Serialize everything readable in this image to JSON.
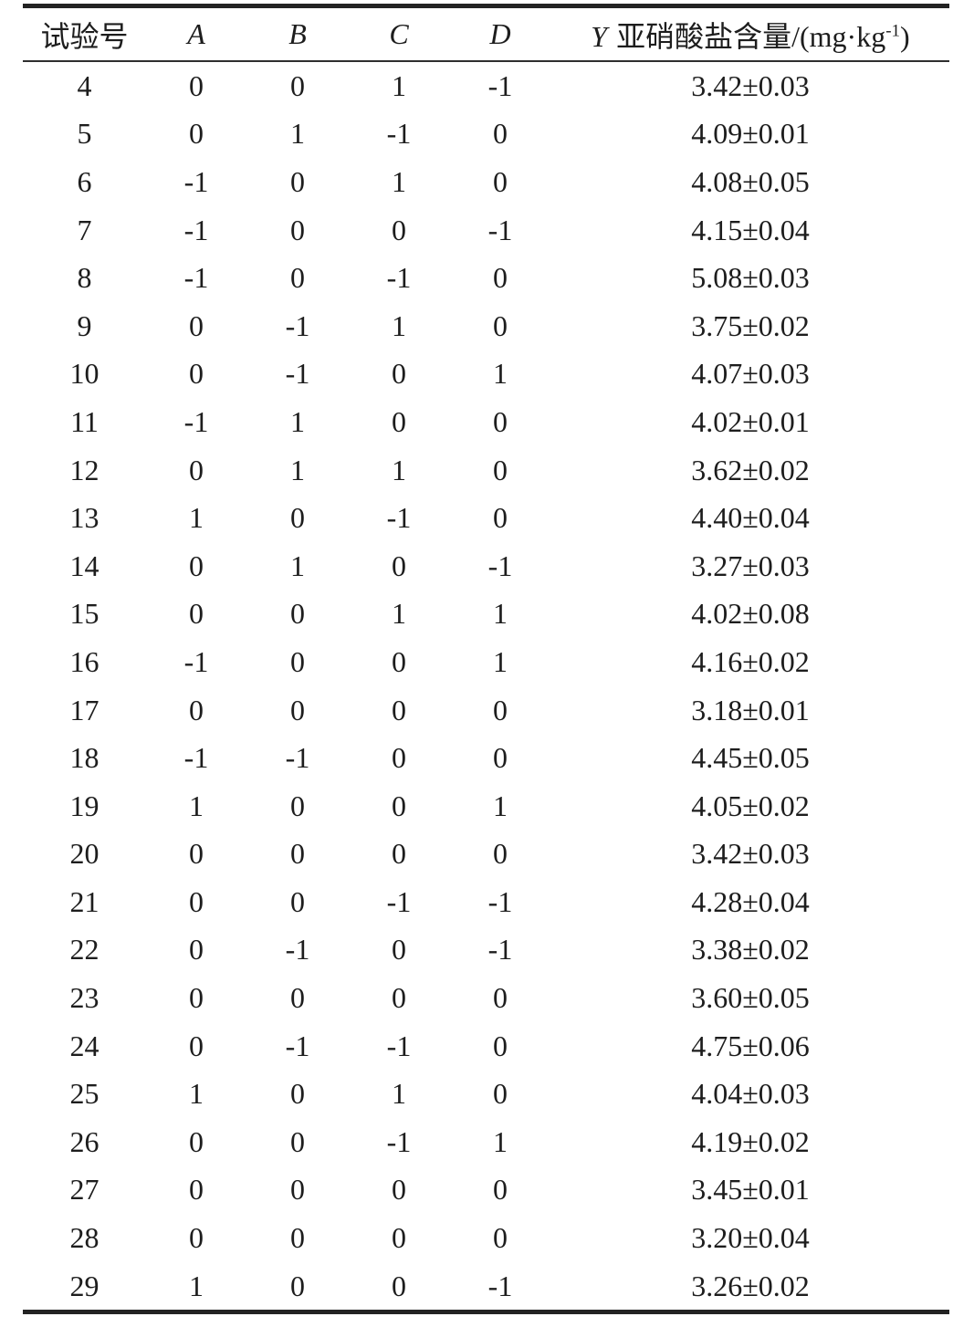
{
  "table": {
    "header": {
      "col_no": "试验号",
      "col_a": "A",
      "col_b": "B",
      "col_c": "C",
      "col_d": "D",
      "col_y_var": "Y",
      "col_y_label": "亚硝酸盐含量/(mg·kg",
      "col_y_sup": "-1",
      "col_y_close": ")"
    },
    "rows": [
      [
        "4",
        "0",
        "0",
        "1",
        "-1",
        "3.42±0.03"
      ],
      [
        "5",
        "0",
        "1",
        "-1",
        "0",
        "4.09±0.01"
      ],
      [
        "6",
        "-1",
        "0",
        "1",
        "0",
        "4.08±0.05"
      ],
      [
        "7",
        "-1",
        "0",
        "0",
        "-1",
        "4.15±0.04"
      ],
      [
        "8",
        "-1",
        "0",
        "-1",
        "0",
        "5.08±0.03"
      ],
      [
        "9",
        "0",
        "-1",
        "1",
        "0",
        "3.75±0.02"
      ],
      [
        "10",
        "0",
        "-1",
        "0",
        "1",
        "4.07±0.03"
      ],
      [
        "11",
        "-1",
        "1",
        "0",
        "0",
        "4.02±0.01"
      ],
      [
        "12",
        "0",
        "1",
        "1",
        "0",
        "3.62±0.02"
      ],
      [
        "13",
        "1",
        "0",
        "-1",
        "0",
        "4.40±0.04"
      ],
      [
        "14",
        "0",
        "1",
        "0",
        "-1",
        "3.27±0.03"
      ],
      [
        "15",
        "0",
        "0",
        "1",
        "1",
        "4.02±0.08"
      ],
      [
        "16",
        "-1",
        "0",
        "0",
        "1",
        "4.16±0.02"
      ],
      [
        "17",
        "0",
        "0",
        "0",
        "0",
        "3.18±0.01"
      ],
      [
        "18",
        "-1",
        "-1",
        "0",
        "0",
        "4.45±0.05"
      ],
      [
        "19",
        "1",
        "0",
        "0",
        "1",
        "4.05±0.02"
      ],
      [
        "20",
        "0",
        "0",
        "0",
        "0",
        "3.42±0.03"
      ],
      [
        "21",
        "0",
        "0",
        "-1",
        "-1",
        "4.28±0.04"
      ],
      [
        "22",
        "0",
        "-1",
        "0",
        "-1",
        "3.38±0.02"
      ],
      [
        "23",
        "0",
        "0",
        "0",
        "0",
        "3.60±0.05"
      ],
      [
        "24",
        "0",
        "-1",
        "-1",
        "0",
        "4.75±0.06"
      ],
      [
        "25",
        "1",
        "0",
        "1",
        "0",
        "4.04±0.03"
      ],
      [
        "26",
        "0",
        "0",
        "-1",
        "1",
        "4.19±0.02"
      ],
      [
        "27",
        "0",
        "0",
        "0",
        "0",
        "3.45±0.01"
      ],
      [
        "28",
        "0",
        "0",
        "0",
        "0",
        "3.20±0.04"
      ],
      [
        "29",
        "1",
        "0",
        "0",
        "-1",
        "3.26±0.02"
      ]
    ],
    "colors": {
      "text": "#1d1d1d",
      "background": "#ffffff",
      "rule": "#232323"
    }
  }
}
